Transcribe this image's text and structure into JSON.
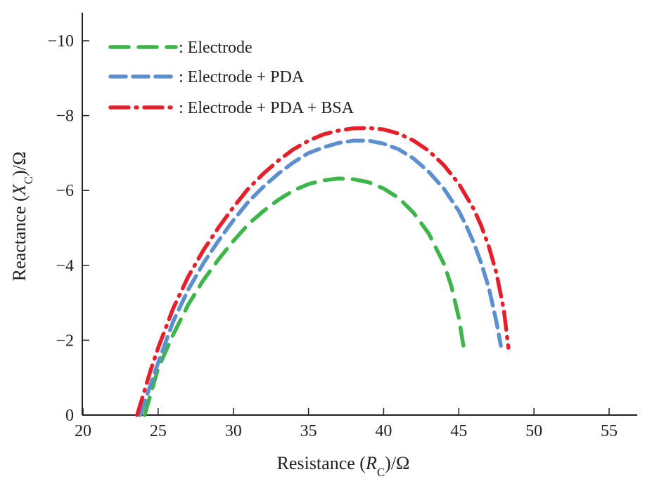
{
  "chart_data": {
    "type": "line",
    "xlabel": {
      "prefix": "Resistance (",
      "var": "R",
      "sub": "C",
      "suffix": ")/Ω"
    },
    "ylabel": {
      "prefix": "Reactance (",
      "var": "X",
      "sub": "C",
      "suffix": ")/Ω"
    },
    "xlim": [
      20,
      57
    ],
    "ylim": [
      0,
      -10.8
    ],
    "xticks": [
      20,
      25,
      30,
      35,
      40,
      45,
      50,
      55
    ],
    "yticks": [
      0,
      -2,
      -4,
      -6,
      -8,
      -10
    ],
    "ytick_labels": [
      "0",
      "−2",
      "−4",
      "−6",
      "−8",
      "−10"
    ],
    "grid": false,
    "legend_position": "top-left",
    "series": [
      {
        "name": ": Electrode",
        "color": "#3db54a",
        "style": "dashed",
        "x": [
          24.1,
          25.0,
          26.0,
          27.0,
          28.0,
          29.0,
          30.0,
          31.0,
          32.0,
          33.0,
          34.0,
          35.0,
          36.0,
          37.0,
          38.0,
          39.0,
          40.0,
          41.0,
          42.0,
          43.0,
          44.0,
          44.5,
          45.0,
          45.2,
          45.35
        ],
        "y": [
          0,
          -1.25,
          -2.15,
          -2.95,
          -3.6,
          -4.15,
          -4.65,
          -5.1,
          -5.45,
          -5.75,
          -6.0,
          -6.17,
          -6.27,
          -6.32,
          -6.3,
          -6.22,
          -6.05,
          -5.8,
          -5.4,
          -4.85,
          -4.05,
          -3.45,
          -2.6,
          -2.1,
          -1.75
        ]
      },
      {
        "name": ": Electrode + PDA",
        "color": "#5b8fd0",
        "style": "dashed",
        "x": [
          23.8,
          25.0,
          26.0,
          27.0,
          28.0,
          29.0,
          30.0,
          31.0,
          32.0,
          33.0,
          34.0,
          35.0,
          36.0,
          37.0,
          38.0,
          39.0,
          40.0,
          41.0,
          42.0,
          43.0,
          44.0,
          45.0,
          45.5,
          46.0,
          46.5,
          47.0,
          47.5,
          47.8
        ],
        "y": [
          0,
          -1.4,
          -2.5,
          -3.35,
          -4.05,
          -4.65,
          -5.2,
          -5.7,
          -6.1,
          -6.45,
          -6.75,
          -7.0,
          -7.15,
          -7.27,
          -7.33,
          -7.33,
          -7.25,
          -7.1,
          -6.85,
          -6.5,
          -6.05,
          -5.45,
          -5.05,
          -4.6,
          -4.05,
          -3.4,
          -2.5,
          -1.85
        ]
      },
      {
        "name": ": Electrode + PDA + BSA",
        "color": "#e4202a",
        "style": "dash-dot",
        "x": [
          23.6,
          24.5,
          25.0,
          26.0,
          27.0,
          28.0,
          29.0,
          30.0,
          31.0,
          32.0,
          33.0,
          34.0,
          35.0,
          36.0,
          37.0,
          38.0,
          39.0,
          40.0,
          41.0,
          42.0,
          43.0,
          44.0,
          45.0,
          46.0,
          46.5,
          47.0,
          47.5,
          48.0,
          48.3
        ],
        "y": [
          0,
          -1.2,
          -1.8,
          -2.85,
          -3.7,
          -4.4,
          -5.0,
          -5.55,
          -6.05,
          -6.45,
          -6.8,
          -7.1,
          -7.33,
          -7.5,
          -7.6,
          -7.66,
          -7.67,
          -7.63,
          -7.52,
          -7.33,
          -7.06,
          -6.68,
          -6.18,
          -5.5,
          -5.05,
          -4.5,
          -3.8,
          -2.8,
          -1.8
        ]
      }
    ]
  }
}
